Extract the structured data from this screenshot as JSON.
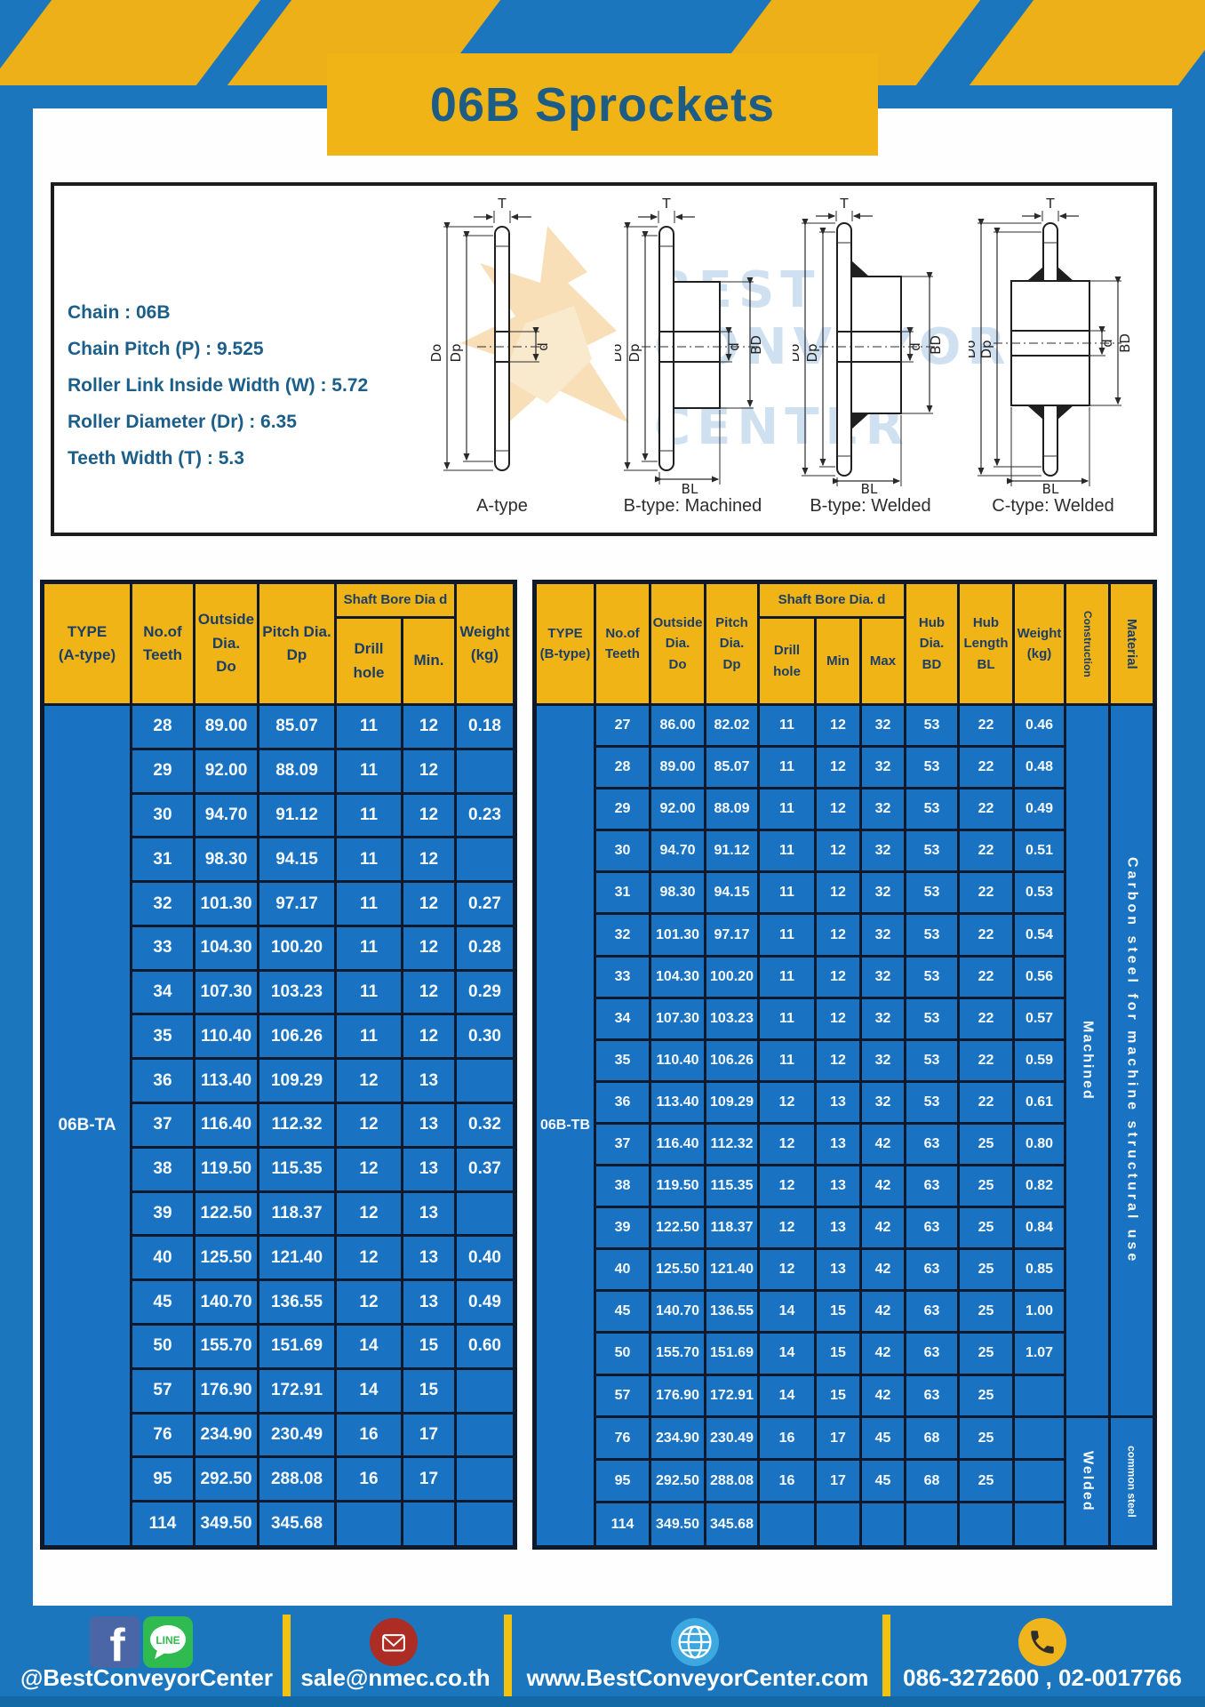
{
  "title": "06B Sprockets",
  "specs": {
    "lines": [
      "Chain : 06B",
      "Chain Pitch (P) : 9.525",
      "Roller Link Inside Width (W) : 5.72",
      "Roller Diameter (Dr) : 6.35",
      "Teeth Width (T) : 5.3"
    ]
  },
  "watermark": {
    "line1": "BEST",
    "line2": "CONVEYOR",
    "line3": "CENTER"
  },
  "dims": {
    "t": "T",
    "do": "Do",
    "dp": "Dp",
    "d": "d",
    "bd": "BD",
    "bl": "BL"
  },
  "diagram_labels": {
    "a": "A-type",
    "b_machined": "B-type: Machined",
    "b_welded": "B-type: Welded",
    "c_welded": "C-type: Welded"
  },
  "table_a": {
    "header": {
      "type": "TYPE\n(A-type)",
      "teeth": "No.of\nTeeth",
      "outside": "Outside\nDia.\nDo",
      "pitch": "Pitch Dia.\nDp",
      "shaft": "Shaft Bore Dia d",
      "drill": "Drill hole",
      "min": "Min.",
      "weight": "Weight\n(kg)"
    },
    "type_value": "06B-TA",
    "rows": [
      [
        "28",
        "89.00",
        "85.07",
        "11",
        "12",
        "0.18"
      ],
      [
        "29",
        "92.00",
        "88.09",
        "11",
        "12",
        ""
      ],
      [
        "30",
        "94.70",
        "91.12",
        "11",
        "12",
        "0.23"
      ],
      [
        "31",
        "98.30",
        "94.15",
        "11",
        "12",
        ""
      ],
      [
        "32",
        "101.30",
        "97.17",
        "11",
        "12",
        "0.27"
      ],
      [
        "33",
        "104.30",
        "100.20",
        "11",
        "12",
        "0.28"
      ],
      [
        "34",
        "107.30",
        "103.23",
        "11",
        "12",
        "0.29"
      ],
      [
        "35",
        "110.40",
        "106.26",
        "11",
        "12",
        "0.30"
      ],
      [
        "36",
        "113.40",
        "109.29",
        "12",
        "13",
        ""
      ],
      [
        "37",
        "116.40",
        "112.32",
        "12",
        "13",
        "0.32"
      ],
      [
        "38",
        "119.50",
        "115.35",
        "12",
        "13",
        "0.37"
      ],
      [
        "39",
        "122.50",
        "118.37",
        "12",
        "13",
        ""
      ],
      [
        "40",
        "125.50",
        "121.40",
        "12",
        "13",
        "0.40"
      ],
      [
        "45",
        "140.70",
        "136.55",
        "12",
        "13",
        "0.49"
      ],
      [
        "50",
        "155.70",
        "151.69",
        "14",
        "15",
        "0.60"
      ],
      [
        "57",
        "176.90",
        "172.91",
        "14",
        "15",
        ""
      ],
      [
        "76",
        "234.90",
        "230.49",
        "16",
        "17",
        ""
      ],
      [
        "95",
        "292.50",
        "288.08",
        "16",
        "17",
        ""
      ],
      [
        "114",
        "349.50",
        "345.68",
        "",
        "",
        ""
      ]
    ]
  },
  "table_b": {
    "header": {
      "type": "TYPE\n(B-type)",
      "teeth": "No.of\nTeeth",
      "outside": "Outside\nDia.\nDo",
      "pitch": "Pitch\nDia.\nDp",
      "shaft": "Shaft Bore Dia. d",
      "drill": "Drill hole",
      "min": "Min",
      "max": "Max",
      "hub_dia": "Hub\nDia.\nBD",
      "hub_len": "Hub\nLength\nBL",
      "weight": "Weight\n(kg)",
      "construction": "Construction",
      "material": "Material"
    },
    "type_value": "06B-TB",
    "construction_groups": [
      {
        "label": "Machined",
        "row_count": 17
      },
      {
        "label": "Welded",
        "row_count": 3
      }
    ],
    "material_groups": [
      {
        "label": "Carbon steel for machine structural use",
        "row_count": 17
      },
      {
        "label": "common steel",
        "row_count": 3
      }
    ],
    "rows": [
      [
        "27",
        "86.00",
        "82.02",
        "11",
        "12",
        "32",
        "53",
        "22",
        "0.46"
      ],
      [
        "28",
        "89.00",
        "85.07",
        "11",
        "12",
        "32",
        "53",
        "22",
        "0.48"
      ],
      [
        "29",
        "92.00",
        "88.09",
        "11",
        "12",
        "32",
        "53",
        "22",
        "0.49"
      ],
      [
        "30",
        "94.70",
        "91.12",
        "11",
        "12",
        "32",
        "53",
        "22",
        "0.51"
      ],
      [
        "31",
        "98.30",
        "94.15",
        "11",
        "12",
        "32",
        "53",
        "22",
        "0.53"
      ],
      [
        "32",
        "101.30",
        "97.17",
        "11",
        "12",
        "32",
        "53",
        "22",
        "0.54"
      ],
      [
        "33",
        "104.30",
        "100.20",
        "11",
        "12",
        "32",
        "53",
        "22",
        "0.56"
      ],
      [
        "34",
        "107.30",
        "103.23",
        "11",
        "12",
        "32",
        "53",
        "22",
        "0.57"
      ],
      [
        "35",
        "110.40",
        "106.26",
        "11",
        "12",
        "32",
        "53",
        "22",
        "0.59"
      ],
      [
        "36",
        "113.40",
        "109.29",
        "12",
        "13",
        "32",
        "53",
        "22",
        "0.61"
      ],
      [
        "37",
        "116.40",
        "112.32",
        "12",
        "13",
        "42",
        "63",
        "25",
        "0.80"
      ],
      [
        "38",
        "119.50",
        "115.35",
        "12",
        "13",
        "42",
        "63",
        "25",
        "0.82"
      ],
      [
        "39",
        "122.50",
        "118.37",
        "12",
        "13",
        "42",
        "63",
        "25",
        "0.84"
      ],
      [
        "40",
        "125.50",
        "121.40",
        "12",
        "13",
        "42",
        "63",
        "25",
        "0.85"
      ],
      [
        "45",
        "140.70",
        "136.55",
        "14",
        "15",
        "42",
        "63",
        "25",
        "1.00"
      ],
      [
        "50",
        "155.70",
        "151.69",
        "14",
        "15",
        "42",
        "63",
        "25",
        "1.07"
      ],
      [
        "57",
        "176.90",
        "172.91",
        "14",
        "15",
        "42",
        "63",
        "25",
        ""
      ],
      [
        "76",
        "234.90",
        "230.49",
        "16",
        "17",
        "45",
        "68",
        "25",
        ""
      ],
      [
        "95",
        "292.50",
        "288.08",
        "16",
        "17",
        "45",
        "68",
        "25",
        ""
      ],
      [
        "114",
        "349.50",
        "345.68",
        "",
        "",
        "",
        "",
        "",
        ""
      ]
    ]
  },
  "footer": {
    "social": "@BestConveyorCenter",
    "email": "sale@nmec.co.th",
    "website": "www.BestConveyorCenter.com",
    "phone": "086-3272600 , 02-0017766",
    "facebook_letter": "f",
    "line_label": "LINE"
  },
  "colors": {
    "page_blue": "#1b76bd",
    "cell_blue": "#1a73c2",
    "accent_yellow": "#f0b417",
    "header_text": "#1c3e66",
    "title_text": "#1d5c84",
    "divider_yellow": "#f2c211",
    "border_dark": "#0e1a2b"
  }
}
